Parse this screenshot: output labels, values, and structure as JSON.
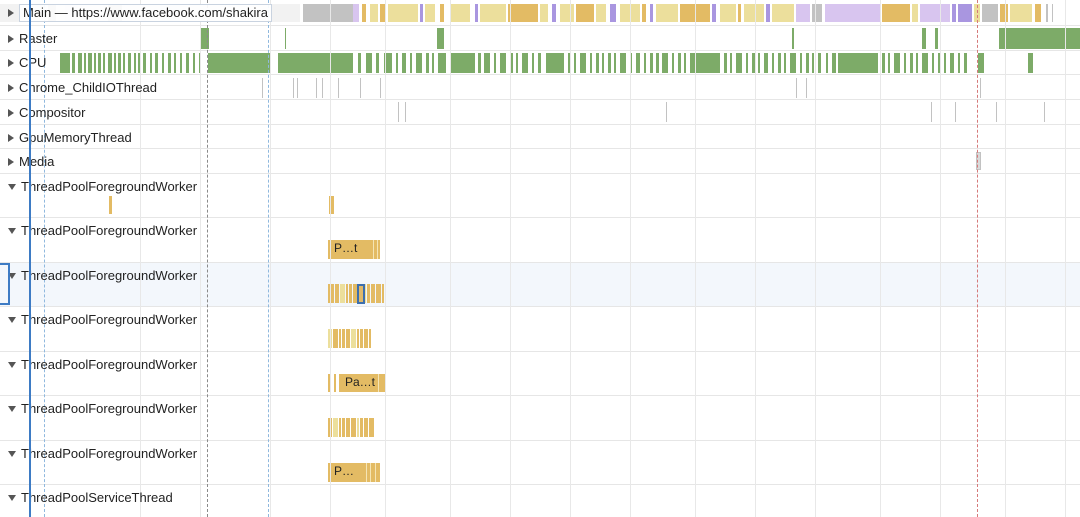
{
  "tracks": [
    {
      "label": "Main — https://www.facebook.com/shakira",
      "expanded": false
    },
    {
      "label": "Raster",
      "expanded": false
    },
    {
      "label": "CPU",
      "expanded": false
    },
    {
      "label": "Chrome_ChildIOThread",
      "expanded": false
    },
    {
      "label": "Compositor",
      "expanded": false
    },
    {
      "label": "GpuMemoryThread",
      "expanded": false
    },
    {
      "label": "Media",
      "expanded": false
    },
    {
      "label": "ThreadPoolForegroundWorker",
      "expanded": true
    },
    {
      "label": "ThreadPoolForegroundWorker",
      "expanded": true,
      "slice_label": "P…t"
    },
    {
      "label": "ThreadPoolForegroundWorker",
      "expanded": true,
      "selected": true
    },
    {
      "label": "ThreadPoolForegroundWorker",
      "expanded": true
    },
    {
      "label": "ThreadPoolForegroundWorker",
      "expanded": true,
      "slice_label": "Pa…t"
    },
    {
      "label": "ThreadPoolForegroundWorker",
      "expanded": true
    },
    {
      "label": "ThreadPoolForegroundWorker",
      "expanded": true,
      "slice_label": "P…"
    },
    {
      "label": "ThreadPoolServiceThread",
      "expanded": true
    }
  ],
  "colors": {
    "slice_yellow": "#e3bb64",
    "slice_light_yellow": "#ecdf9c",
    "slice_purple": "#a996e0",
    "slice_lavender": "#d8c5ef",
    "slice_gray": "#c2c2c2",
    "cpu_green": "#7dab68",
    "selection_blue": "#3d7bc4",
    "grid": "#e8e8e8"
  }
}
